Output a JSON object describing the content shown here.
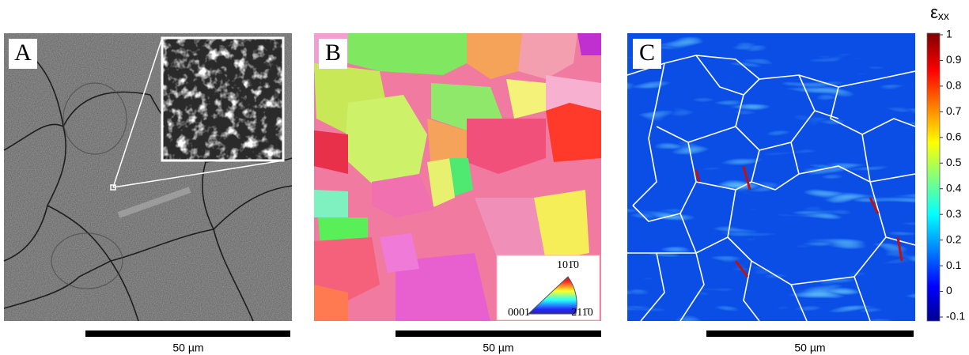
{
  "panels": [
    {
      "label": "A",
      "scale_bar": "50 µm"
    },
    {
      "label": "B",
      "scale_bar": "50 µm"
    },
    {
      "label": "C",
      "scale_bar": "50 µm"
    }
  ],
  "orientation_key": {
    "top": "101̄0",
    "left": "0001",
    "right": "211̄0"
  },
  "colorbar": {
    "label": "ε",
    "label_sub": "xx",
    "ticks": [
      -0.1,
      0,
      0.1,
      0.2,
      0.3,
      0.4,
      0.5,
      0.6,
      0.7,
      0.8,
      0.9,
      1
    ]
  }
}
